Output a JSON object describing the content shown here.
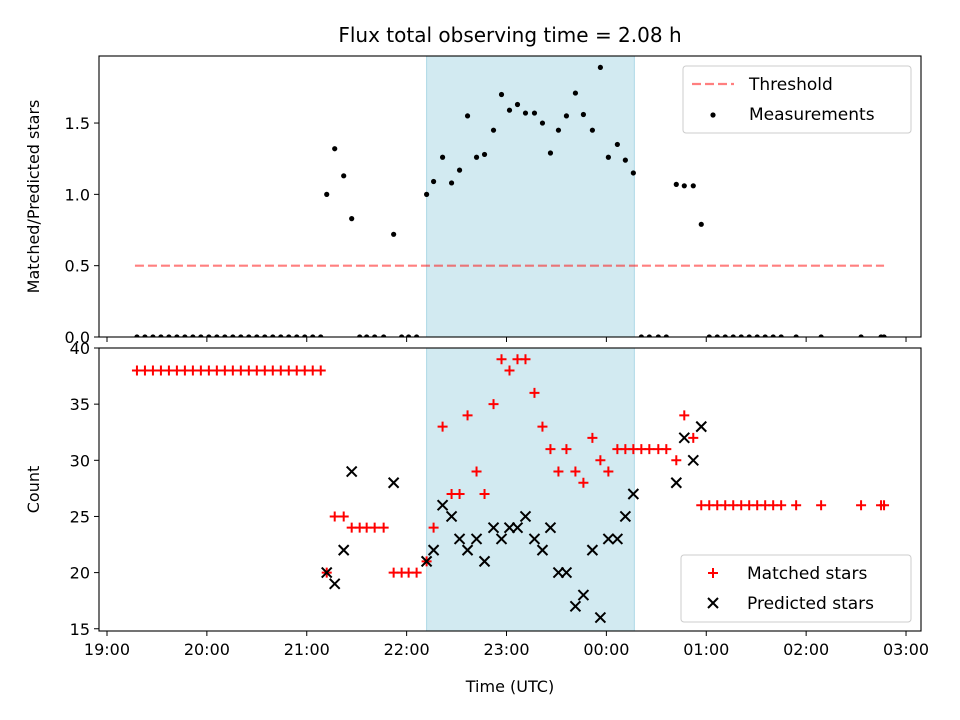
{
  "title": "Flux total observing time = 2.08 h",
  "chart_data": [
    {
      "type": "scatter",
      "ylabel": "Matched/Predicted stars",
      "xlim": [
        18.92,
        27.15
      ],
      "ylim": [
        0,
        1.97
      ],
      "yticks": [
        0.0,
        0.5,
        1.0,
        1.5
      ],
      "ytick_labels": [
        "0.0",
        "0.5",
        "1.0",
        "1.5"
      ],
      "shaded_interval": [
        22.2,
        24.28
      ],
      "shaded_color": "#add8e6",
      "threshold": {
        "name": "Threshold",
        "value": 0.5,
        "x_range": [
          19.28,
          26.78
        ],
        "color": "#ff0000",
        "style": "dashed"
      },
      "legend": {
        "placement": "top-right",
        "entries": [
          "Threshold",
          "Measurements"
        ]
      },
      "series": [
        {
          "name": "Measurements",
          "color": "#000000",
          "marker": "dot",
          "points": [
            [
              19.3,
              0
            ],
            [
              19.38,
              0
            ],
            [
              19.46,
              0
            ],
            [
              19.54,
              0
            ],
            [
              19.62,
              0
            ],
            [
              19.7,
              0
            ],
            [
              19.78,
              0
            ],
            [
              19.86,
              0
            ],
            [
              19.94,
              0
            ],
            [
              20.02,
              0
            ],
            [
              20.1,
              0
            ],
            [
              20.18,
              0
            ],
            [
              20.26,
              0
            ],
            [
              20.34,
              0
            ],
            [
              20.42,
              0
            ],
            [
              20.5,
              0
            ],
            [
              20.58,
              0
            ],
            [
              20.66,
              0
            ],
            [
              20.74,
              0
            ],
            [
              20.82,
              0
            ],
            [
              20.9,
              0
            ],
            [
              20.98,
              0
            ],
            [
              21.06,
              0
            ],
            [
              21.14,
              0
            ],
            [
              21.2,
              1.0
            ],
            [
              21.28,
              1.32
            ],
            [
              21.37,
              1.13
            ],
            [
              21.45,
              0.83
            ],
            [
              21.53,
              0
            ],
            [
              21.6,
              0
            ],
            [
              21.68,
              0
            ],
            [
              21.77,
              0
            ],
            [
              21.87,
              0.72
            ],
            [
              21.95,
              0
            ],
            [
              22.02,
              0
            ],
            [
              22.1,
              0
            ],
            [
              22.2,
              1.0
            ],
            [
              22.27,
              1.09
            ],
            [
              22.36,
              1.26
            ],
            [
              22.45,
              1.08
            ],
            [
              22.53,
              1.17
            ],
            [
              22.61,
              1.55
            ],
            [
              22.7,
              1.26
            ],
            [
              22.78,
              1.28
            ],
            [
              22.87,
              1.45
            ],
            [
              22.95,
              1.7
            ],
            [
              23.03,
              1.59
            ],
            [
              23.11,
              1.63
            ],
            [
              23.19,
              1.57
            ],
            [
              23.28,
              1.57
            ],
            [
              23.36,
              1.5
            ],
            [
              23.44,
              1.29
            ],
            [
              23.52,
              1.45
            ],
            [
              23.6,
              1.55
            ],
            [
              23.69,
              1.71
            ],
            [
              23.77,
              1.56
            ],
            [
              23.86,
              1.45
            ],
            [
              23.94,
              1.89
            ],
            [
              24.02,
              1.26
            ],
            [
              24.11,
              1.35
            ],
            [
              24.19,
              1.24
            ],
            [
              24.27,
              1.15
            ],
            [
              24.35,
              0
            ],
            [
              24.43,
              0
            ],
            [
              24.52,
              0
            ],
            [
              24.6,
              0
            ],
            [
              24.7,
              1.07
            ],
            [
              24.78,
              1.06
            ],
            [
              24.87,
              1.06
            ],
            [
              24.95,
              0.79
            ],
            [
              25.03,
              0
            ],
            [
              25.11,
              0
            ],
            [
              25.19,
              0
            ],
            [
              25.27,
              0
            ],
            [
              25.35,
              0
            ],
            [
              25.43,
              0
            ],
            [
              25.51,
              0
            ],
            [
              25.59,
              0
            ],
            [
              25.67,
              0
            ],
            [
              25.75,
              0
            ],
            [
              25.9,
              0
            ],
            [
              26.15,
              0
            ],
            [
              26.55,
              0
            ],
            [
              26.75,
              0
            ],
            [
              26.78,
              0
            ]
          ]
        }
      ]
    },
    {
      "type": "scatter",
      "xlabel": "Time (UTC)",
      "ylabel": "Count",
      "xlim": [
        18.92,
        27.15
      ],
      "ylim": [
        14.8,
        40
      ],
      "yticks": [
        15,
        20,
        25,
        30,
        35,
        40
      ],
      "ytick_labels": [
        "15",
        "20",
        "25",
        "30",
        "35",
        "40"
      ],
      "xticks": [
        19,
        20,
        21,
        22,
        23,
        24,
        25,
        26,
        27
      ],
      "xtick_labels": [
        "19:00",
        "20:00",
        "21:00",
        "22:00",
        "23:00",
        "00:00",
        "01:00",
        "02:00",
        "03:00"
      ],
      "shaded_interval": [
        22.2,
        24.28
      ],
      "shaded_color": "#add8e6",
      "legend": {
        "placement": "bottom-right",
        "entries": [
          "Matched stars",
          "Predicted stars"
        ]
      },
      "series": [
        {
          "name": "Matched stars",
          "color": "#ff0000",
          "marker": "plus",
          "points": [
            [
              19.3,
              38
            ],
            [
              19.38,
              38
            ],
            [
              19.46,
              38
            ],
            [
              19.54,
              38
            ],
            [
              19.62,
              38
            ],
            [
              19.7,
              38
            ],
            [
              19.78,
              38
            ],
            [
              19.86,
              38
            ],
            [
              19.94,
              38
            ],
            [
              20.02,
              38
            ],
            [
              20.1,
              38
            ],
            [
              20.18,
              38
            ],
            [
              20.26,
              38
            ],
            [
              20.34,
              38
            ],
            [
              20.42,
              38
            ],
            [
              20.5,
              38
            ],
            [
              20.58,
              38
            ],
            [
              20.66,
              38
            ],
            [
              20.74,
              38
            ],
            [
              20.82,
              38
            ],
            [
              20.9,
              38
            ],
            [
              20.98,
              38
            ],
            [
              21.06,
              38
            ],
            [
              21.14,
              38
            ],
            [
              21.2,
              20
            ],
            [
              21.28,
              25
            ],
            [
              21.37,
              25
            ],
            [
              21.45,
              24
            ],
            [
              21.53,
              24
            ],
            [
              21.6,
              24
            ],
            [
              21.68,
              24
            ],
            [
              21.77,
              24
            ],
            [
              21.87,
              20
            ],
            [
              21.95,
              20
            ],
            [
              22.02,
              20
            ],
            [
              22.1,
              20
            ],
            [
              22.2,
              21
            ],
            [
              22.27,
              24
            ],
            [
              22.36,
              33
            ],
            [
              22.45,
              27
            ],
            [
              22.53,
              27
            ],
            [
              22.61,
              34
            ],
            [
              22.7,
              29
            ],
            [
              22.78,
              27
            ],
            [
              22.87,
              35
            ],
            [
              22.95,
              39
            ],
            [
              23.03,
              38
            ],
            [
              23.11,
              39
            ],
            [
              23.19,
              39
            ],
            [
              23.28,
              36
            ],
            [
              23.36,
              33
            ],
            [
              23.44,
              31
            ],
            [
              23.52,
              29
            ],
            [
              23.6,
              31
            ],
            [
              23.69,
              29
            ],
            [
              23.77,
              28
            ],
            [
              23.86,
              32
            ],
            [
              23.94,
              30
            ],
            [
              24.02,
              29
            ],
            [
              24.11,
              31
            ],
            [
              24.19,
              31
            ],
            [
              24.27,
              31
            ],
            [
              24.35,
              31
            ],
            [
              24.43,
              31
            ],
            [
              24.52,
              31
            ],
            [
              24.6,
              31
            ],
            [
              24.7,
              30
            ],
            [
              24.78,
              34
            ],
            [
              24.87,
              32
            ],
            [
              24.95,
              26
            ],
            [
              25.03,
              26
            ],
            [
              25.11,
              26
            ],
            [
              25.19,
              26
            ],
            [
              25.27,
              26
            ],
            [
              25.35,
              26
            ],
            [
              25.43,
              26
            ],
            [
              25.51,
              26
            ],
            [
              25.59,
              26
            ],
            [
              25.67,
              26
            ],
            [
              25.75,
              26
            ],
            [
              25.9,
              26
            ],
            [
              26.15,
              26
            ],
            [
              26.55,
              26
            ],
            [
              26.75,
              26
            ],
            [
              26.78,
              26
            ]
          ]
        },
        {
          "name": "Predicted stars",
          "color": "#000000",
          "marker": "x",
          "points": [
            [
              21.2,
              20
            ],
            [
              21.28,
              19
            ],
            [
              21.37,
              22
            ],
            [
              21.45,
              29
            ],
            [
              21.87,
              28
            ],
            [
              22.2,
              21
            ],
            [
              22.27,
              22
            ],
            [
              22.36,
              26
            ],
            [
              22.45,
              25
            ],
            [
              22.53,
              23
            ],
            [
              22.61,
              22
            ],
            [
              22.7,
              23
            ],
            [
              22.78,
              21
            ],
            [
              22.87,
              24
            ],
            [
              22.95,
              23
            ],
            [
              23.03,
              24
            ],
            [
              23.11,
              24
            ],
            [
              23.19,
              25
            ],
            [
              23.28,
              23
            ],
            [
              23.36,
              22
            ],
            [
              23.44,
              24
            ],
            [
              23.52,
              20
            ],
            [
              23.6,
              20
            ],
            [
              23.69,
              17
            ],
            [
              23.77,
              18
            ],
            [
              23.86,
              22
            ],
            [
              23.94,
              16
            ],
            [
              24.02,
              23
            ],
            [
              24.11,
              23
            ],
            [
              24.19,
              25
            ],
            [
              24.27,
              27
            ],
            [
              24.7,
              28
            ],
            [
              24.78,
              32
            ],
            [
              24.87,
              30
            ],
            [
              24.95,
              33
            ]
          ]
        }
      ]
    }
  ]
}
